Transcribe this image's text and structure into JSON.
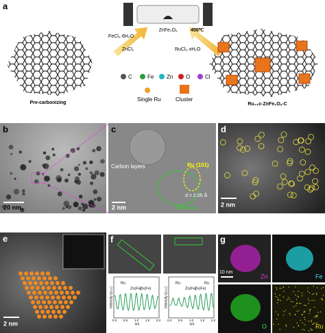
{
  "panel_labels": [
    "a",
    "b",
    "c",
    "d",
    "e",
    "f",
    "g"
  ],
  "schematic": {
    "reagents_left": [
      "FeCl₃·6H₂O",
      "ZnCl₂"
    ],
    "furnace_product": "ZnFe₂Oₓ",
    "temperature": "450℃",
    "reagent_right": "RuCl₃·xH₂O",
    "left_caption": "Pre-carbonizing",
    "right_caption": "Ru₁₊c-ZnFe₂Oₓ-C",
    "legend": [
      "C",
      "Fe",
      "Zn",
      "O",
      "Cl",
      "Single Ru",
      "Cluster"
    ]
  },
  "panel_b": {
    "scale_bar": "20 nm"
  },
  "panel_c": {
    "labels": [
      "Carbon layers",
      "Ru (101)",
      "d = 2.05 Å",
      "ZnFe₂O₄"
    ],
    "scale_bar": "2 nm"
  },
  "panel_d": {
    "scale_bar": "2 nm"
  },
  "panel_e": {
    "scale_bar": "2 nm"
  },
  "panel_f": {
    "profiles": [
      {
        "peak_labels": [
          "Ru",
          "Zn(Fe)",
          "Zn(Fe)"
        ]
      },
      {
        "peak_labels": [
          "Ru",
          "Zn(Fe)",
          "Zn(Fe)",
          "Ru"
        ]
      }
    ],
    "y_label": "Intensity (a.u.)",
    "x_label": "nm",
    "x_ticks": [
      "0.0",
      "0.5",
      "1.0",
      "1.5",
      "2.0"
    ]
  },
  "panel_g": {
    "scale_bar": "10 nm",
    "maps": [
      "Zn",
      "Fe",
      "O",
      "Ru"
    ]
  }
}
